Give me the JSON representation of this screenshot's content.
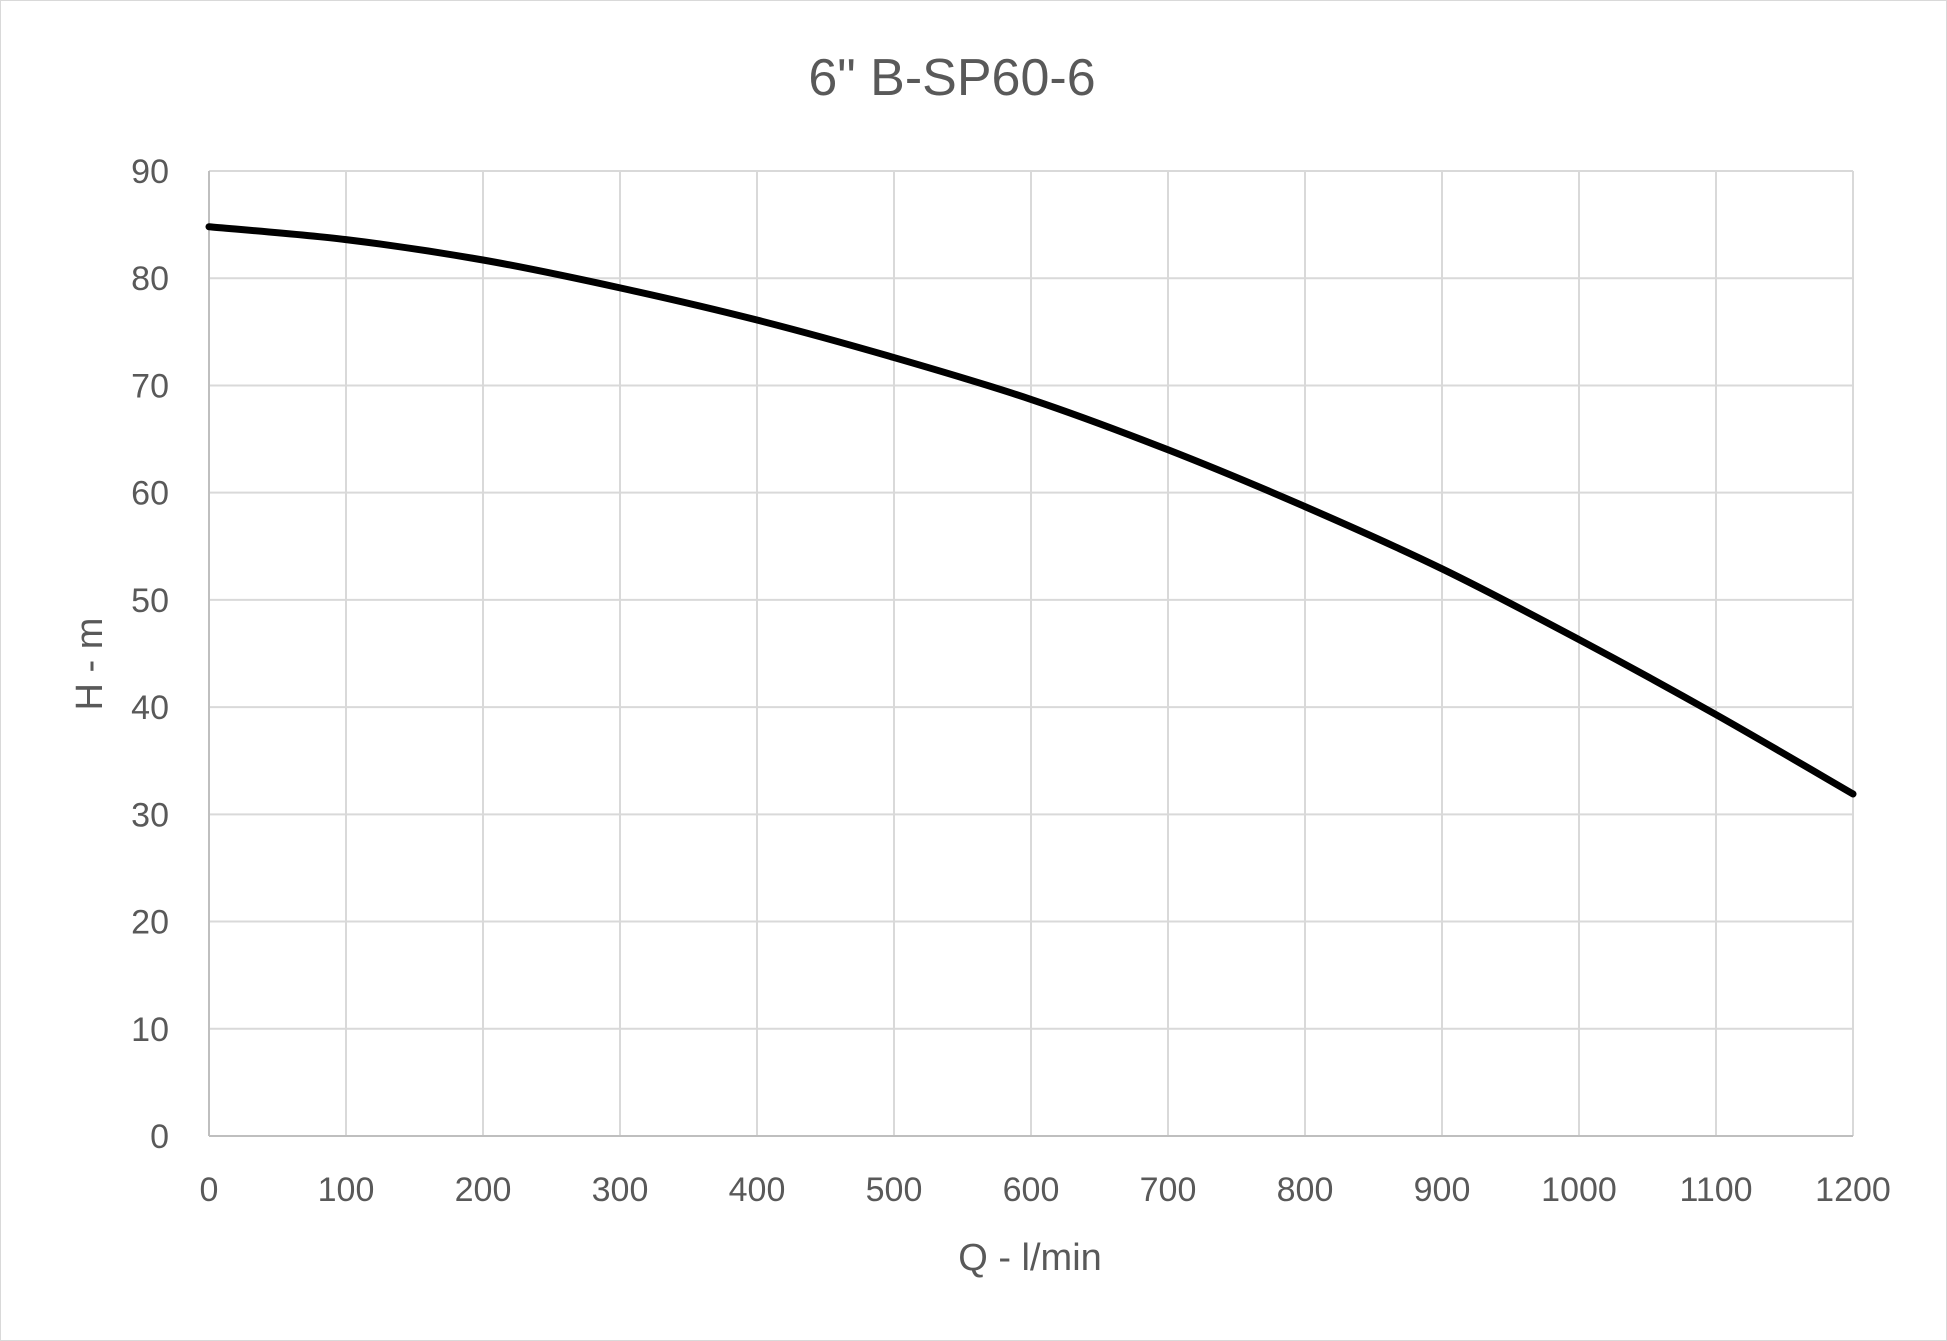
{
  "chart_data": {
    "type": "line",
    "title": "6\" B-SP60-6",
    "xlabel": "Q - l/min",
    "ylabel": "H - m",
    "xlim": [
      0,
      1200
    ],
    "ylim": [
      0,
      90
    ],
    "x_ticks": [
      "0",
      "100",
      "200",
      "300",
      "400",
      "500",
      "600",
      "700",
      "800",
      "900",
      "1000",
      "1100",
      "1200"
    ],
    "y_ticks": [
      "0",
      "10",
      "20",
      "30",
      "40",
      "50",
      "60",
      "70",
      "80",
      "90"
    ],
    "grid": true,
    "legend": "none",
    "line_color": "#000000",
    "series": [
      {
        "x": [
          0,
          100,
          200,
          300,
          400,
          500,
          600,
          700,
          800,
          900,
          1000,
          1100,
          1200
        ],
        "values": [
          84.8,
          83.6,
          81.7,
          79.1,
          76.1,
          72.6,
          68.7,
          64.0,
          58.7,
          52.9,
          46.3,
          39.3,
          31.9
        ]
      }
    ]
  }
}
